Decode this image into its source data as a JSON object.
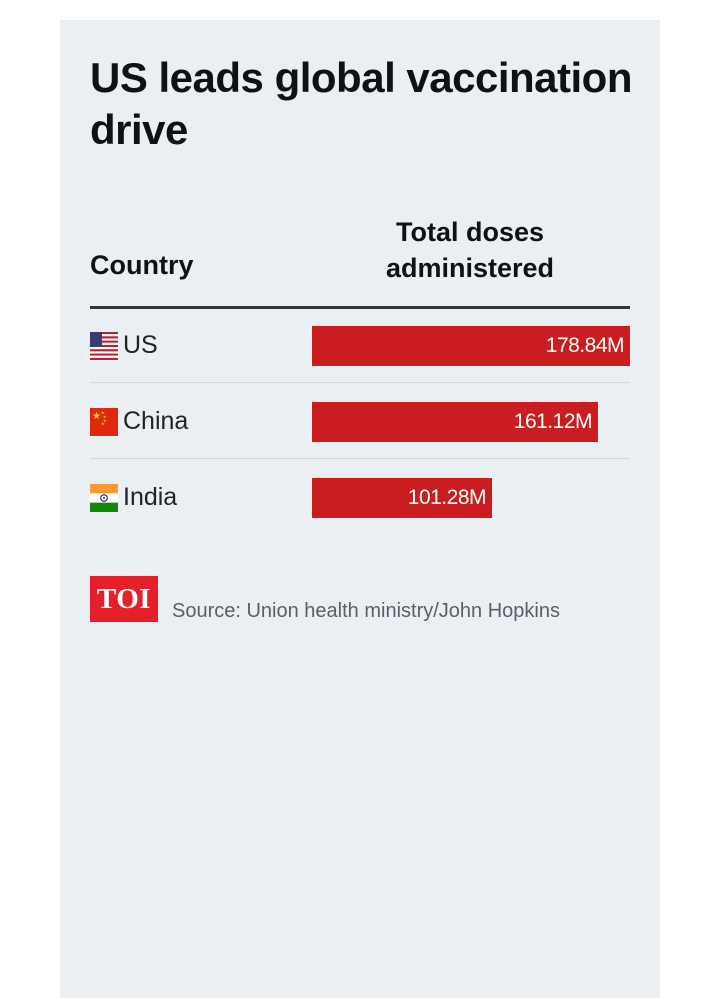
{
  "title": "US leads global vaccination drive",
  "table": {
    "col_country": "Country",
    "col_doses_line1": "Total doses",
    "col_doses_line2": "administered"
  },
  "chart_data": {
    "type": "bar",
    "orientation": "horizontal",
    "title": "US leads global vaccination drive",
    "categories": [
      "US",
      "China",
      "India"
    ],
    "values": [
      178.84,
      161.12,
      101.28
    ],
    "value_labels": [
      "178.84M",
      "161.12M",
      "101.28M"
    ],
    "unit": "M",
    "xlim": [
      0,
      178.84
    ],
    "bar_color": "#c91d1f",
    "flags": [
      "us-flag-icon",
      "china-flag-icon",
      "india-flag-icon"
    ]
  },
  "footer": {
    "logo": "TOI",
    "logo_color": "#e5202a",
    "source": "Source: Union health ministry/John Hopkins"
  }
}
